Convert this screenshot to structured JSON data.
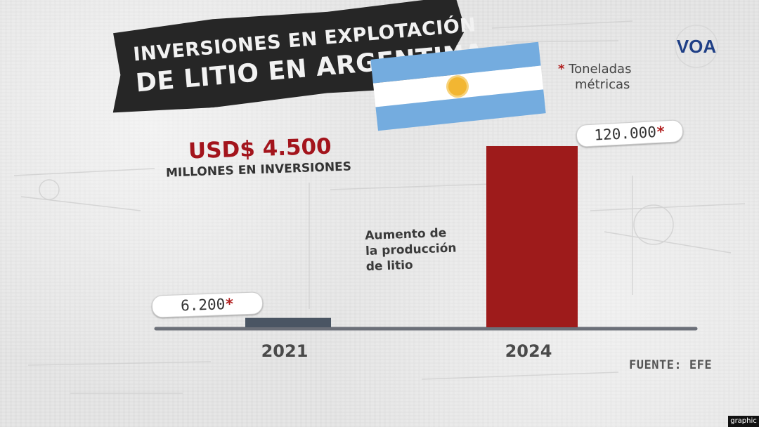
{
  "title": {
    "line1": "INVERSIONES EN EXPLOTACIÓN",
    "line2": "DE LITIO EN ARGENTINA"
  },
  "investment": {
    "amount": "USD$ 4.500",
    "label": "MILLONES EN INVERSIONES"
  },
  "unit_note": {
    "star": "*",
    "line1": "Toneladas",
    "line2": "métricas"
  },
  "annotation": {
    "line1": "Aumento de",
    "line2": "la producción",
    "line3": "de litio"
  },
  "source": "FUENTE: EFE",
  "logo_text": "VOA",
  "badge": "graphic",
  "colors": {
    "accent_red": "#a3141c",
    "bar_2021": "#4a5563",
    "bar_2024": "#9e1b1b",
    "axis": "#6b6f78",
    "flag_blue": "#74acdf",
    "flag_sun": "#f2b632"
  },
  "chart_data": {
    "type": "bar",
    "categories": [
      "2021",
      "2024"
    ],
    "values": [
      6200,
      120000
    ],
    "value_labels": [
      "6.200",
      "120.000"
    ],
    "value_label_mark": "*",
    "title": "",
    "xlabel": "",
    "ylabel": "",
    "ylim": [
      0,
      120000
    ],
    "grid": false
  }
}
